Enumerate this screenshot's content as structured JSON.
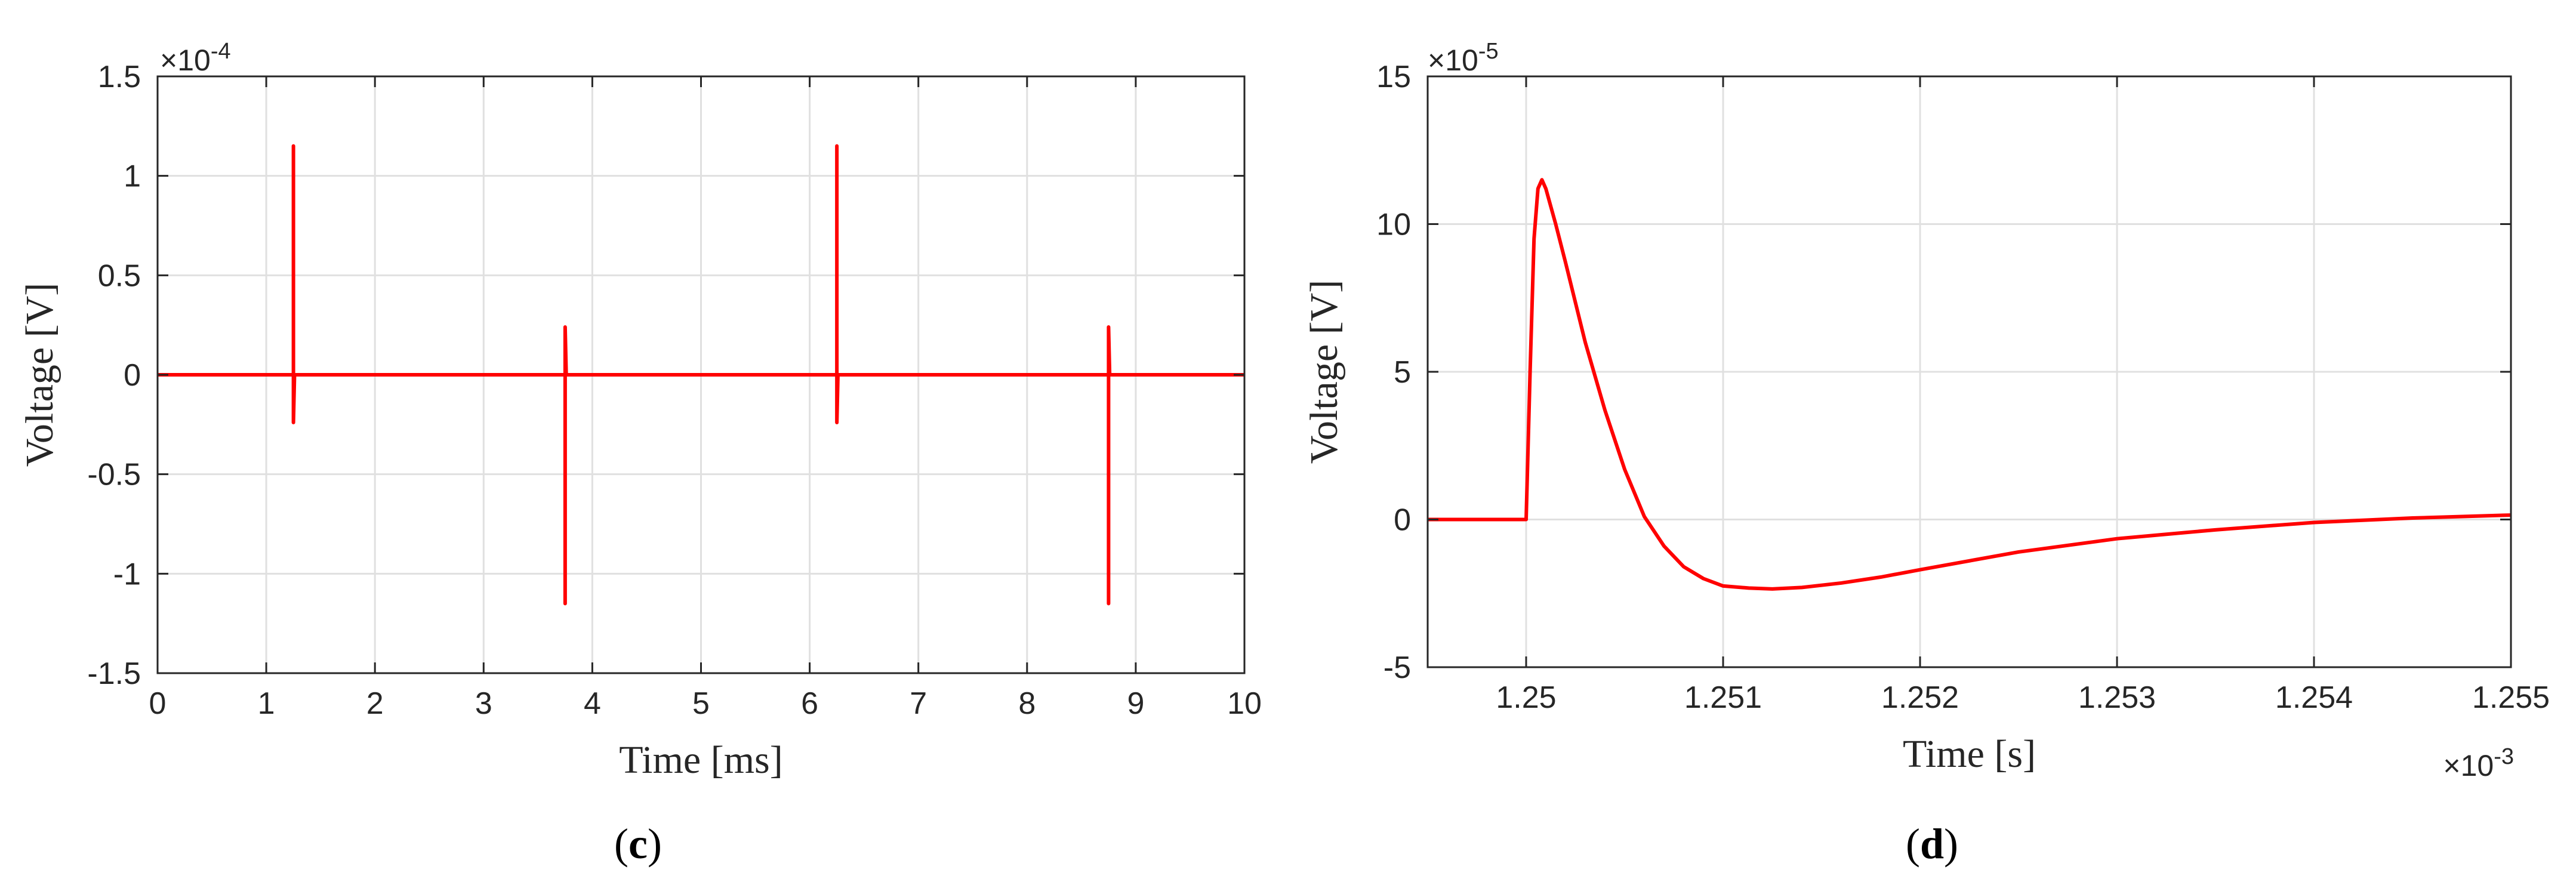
{
  "colors": {
    "series": "#ff0000",
    "grid": "#e0e0e0",
    "axis": "#262626"
  },
  "chart_data": [
    {
      "type": "line",
      "panel_label": "c",
      "xlabel": "Time [ms]",
      "ylabel": "Voltage [V]",
      "xlim": [
        0,
        10
      ],
      "ylim": [
        -1.5,
        1.5
      ],
      "xticks": [
        0,
        1,
        2,
        3,
        4,
        5,
        6,
        7,
        8,
        9,
        10
      ],
      "xtick_labels": [
        "0",
        "1",
        "2",
        "3",
        "4",
        "5",
        "6",
        "7",
        "8",
        "9",
        "10"
      ],
      "yticks": [
        -1.5,
        -1,
        -0.5,
        0,
        0.5,
        1,
        1.5
      ],
      "ytick_labels": [
        "-1.5",
        "-1",
        "-0.5",
        "0",
        "0.5",
        "1",
        "1.5"
      ],
      "y_multiplier": {
        "base": "×10",
        "exponent": "-4"
      },
      "grid": true,
      "series": [
        {
          "x": [
            0,
            1.25,
            1.25,
            1.25,
            1.26,
            3.75,
            3.75,
            3.75,
            3.76,
            6.25,
            6.25,
            6.25,
            6.26,
            8.75,
            8.75,
            8.75,
            8.76,
            10
          ],
          "y": [
            0,
            0,
            1.15,
            -0.24,
            0,
            0,
            -1.15,
            0.24,
            0,
            0,
            1.15,
            -0.24,
            0,
            0,
            -1.15,
            0.24,
            0,
            0
          ]
        }
      ]
    },
    {
      "type": "line",
      "panel_label": "d",
      "xlabel": "Time [s]",
      "ylabel": "Voltage [V]",
      "xlim": [
        1.2495,
        1.255
      ],
      "ylim": [
        -5,
        15
      ],
      "xticks": [
        1.25,
        1.251,
        1.252,
        1.253,
        1.254,
        1.255
      ],
      "xtick_labels": [
        "1.25",
        "1.251",
        "1.252",
        "1.253",
        "1.254",
        "1.255"
      ],
      "yticks": [
        -5,
        0,
        5,
        10,
        15
      ],
      "ytick_labels": [
        "-5",
        "0",
        "5",
        "10",
        "15"
      ],
      "x_multiplier": {
        "base": "×10",
        "exponent": "-3"
      },
      "y_multiplier": {
        "base": "×10",
        "exponent": "-5"
      },
      "grid": true,
      "series": [
        {
          "x": [
            1.2495,
            1.25,
            1.25002,
            1.25004,
            1.25006,
            1.25008,
            1.2501,
            1.25015,
            1.2502,
            1.2503,
            1.2504,
            1.2505,
            1.2506,
            1.2507,
            1.2508,
            1.2509,
            1.251,
            1.25113,
            1.25125,
            1.2514,
            1.2516,
            1.2518,
            1.252,
            1.2525,
            1.253,
            1.2535,
            1.254,
            1.2545,
            1.255
          ],
          "y": [
            0,
            0,
            5.0,
            9.5,
            11.2,
            11.5,
            11.2,
            10.0,
            8.7,
            6.0,
            3.7,
            1.7,
            0.1,
            -0.9,
            -1.6,
            -2.0,
            -2.25,
            -2.32,
            -2.35,
            -2.3,
            -2.15,
            -1.95,
            -1.7,
            -1.1,
            -0.65,
            -0.35,
            -0.1,
            0.05,
            0.15
          ]
        }
      ]
    }
  ]
}
